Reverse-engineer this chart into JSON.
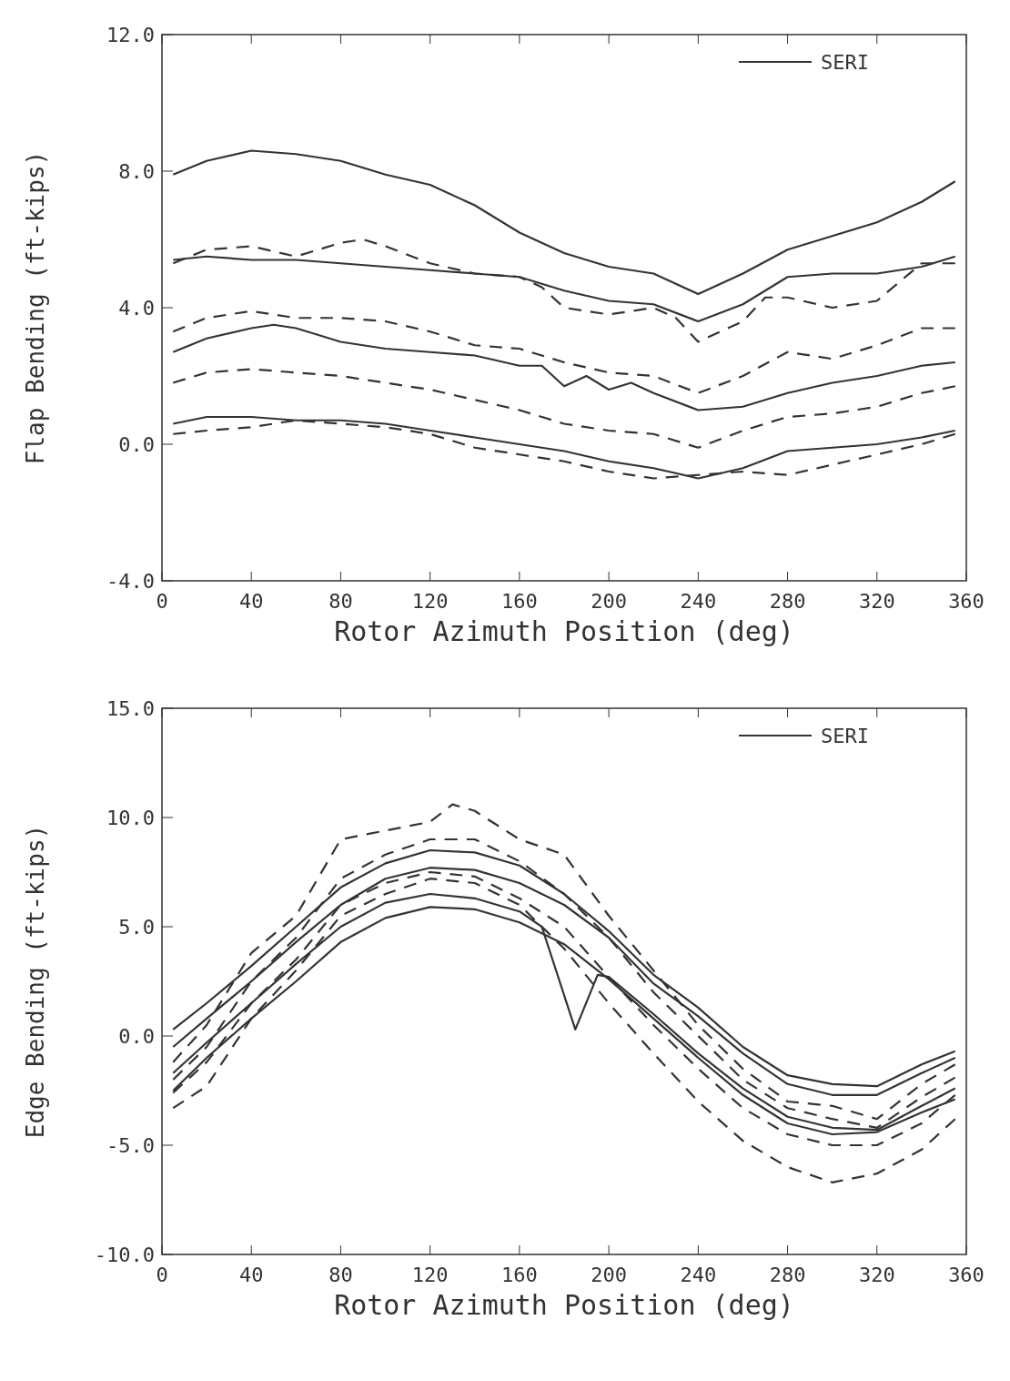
{
  "chart_data": [
    {
      "type": "line",
      "xlabel": "Rotor Azimuth Position (deg)",
      "ylabel": "Flap Bending (ft-kips)",
      "x": [
        5,
        20,
        40,
        60,
        80,
        100,
        120,
        140,
        160,
        180,
        200,
        220,
        240,
        260,
        280,
        300,
        320,
        340,
        355
      ],
      "xlim": [
        0,
        360
      ],
      "xticks": [
        0,
        40,
        80,
        120,
        160,
        200,
        240,
        280,
        320,
        360
      ],
      "ylim": [
        -4,
        12
      ],
      "yticks": [
        {
          "value": -4,
          "label": "-4.0"
        },
        {
          "value": 0,
          "label": "0.0"
        },
        {
          "value": 4,
          "label": "4.0"
        },
        {
          "value": 8,
          "label": "8.0"
        },
        {
          "value": 12,
          "label": "12.0"
        }
      ],
      "legend": "top right",
      "grid": false,
      "series": [
        {
          "name": "SERI",
          "color": "#333333",
          "line_style": "solid",
          "values": [
            7.9,
            8.3,
            8.6,
            8.5,
            8.3,
            7.9,
            7.6,
            7.0,
            6.2,
            5.6,
            5.2,
            5.0,
            4.4,
            5.0,
            5.7,
            6.1,
            6.5,
            7.1,
            7.7
          ]
        },
        {
          "color": "#333333",
          "line_style": "solid",
          "values": [
            5.4,
            5.5,
            5.4,
            5.4,
            5.3,
            5.2,
            5.1,
            5.0,
            4.9,
            4.5,
            4.2,
            4.1,
            3.6,
            4.1,
            4.9,
            5.0,
            5.0,
            5.2,
            5.5
          ]
        },
        {
          "color": "#333333",
          "line_style": "solid",
          "x": [
            5,
            20,
            40,
            50,
            60,
            80,
            100,
            120,
            140,
            160,
            170,
            180,
            190,
            200,
            210,
            220,
            240,
            260,
            280,
            300,
            320,
            340,
            355
          ],
          "values": [
            2.7,
            3.1,
            3.4,
            3.5,
            3.4,
            3.0,
            2.8,
            2.7,
            2.6,
            2.3,
            2.3,
            1.7,
            2.0,
            1.6,
            1.8,
            1.5,
            1.0,
            1.1,
            1.5,
            1.8,
            2.0,
            2.3,
            2.4
          ]
        },
        {
          "color": "#333333",
          "line_style": "solid",
          "values": [
            0.6,
            0.8,
            0.8,
            0.7,
            0.7,
            0.6,
            0.4,
            0.2,
            0.0,
            -0.2,
            -0.5,
            -0.7,
            -1.0,
            -0.7,
            -0.2,
            -0.1,
            0.0,
            0.2,
            0.4
          ]
        },
        {
          "color": "#333333",
          "line_style": "dashed",
          "x": [
            5,
            20,
            40,
            60,
            80,
            90,
            100,
            120,
            140,
            160,
            170,
            180,
            200,
            220,
            230,
            240,
            260,
            270,
            280,
            300,
            320,
            340,
            355
          ],
          "values": [
            5.3,
            5.7,
            5.8,
            5.5,
            5.9,
            6.0,
            5.8,
            5.3,
            5.0,
            4.9,
            4.6,
            4.0,
            3.8,
            4.0,
            3.7,
            3.0,
            3.6,
            4.3,
            4.3,
            4.0,
            4.2,
            5.3,
            5.3
          ]
        },
        {
          "color": "#333333",
          "line_style": "dashed",
          "values": [
            3.3,
            3.7,
            3.9,
            3.7,
            3.7,
            3.6,
            3.3,
            2.9,
            2.8,
            2.4,
            2.1,
            2.0,
            1.5,
            2.0,
            2.7,
            2.5,
            2.9,
            3.4,
            3.4
          ]
        },
        {
          "color": "#333333",
          "line_style": "dashed",
          "values": [
            1.8,
            2.1,
            2.2,
            2.1,
            2.0,
            1.8,
            1.6,
            1.3,
            1.0,
            0.6,
            0.4,
            0.3,
            -0.1,
            0.4,
            0.8,
            0.9,
            1.1,
            1.5,
            1.7
          ]
        },
        {
          "color": "#333333",
          "line_style": "dashed",
          "values": [
            0.3,
            0.4,
            0.5,
            0.7,
            0.6,
            0.5,
            0.3,
            -0.1,
            -0.3,
            -0.5,
            -0.8,
            -1.0,
            -0.9,
            -0.8,
            -0.9,
            -0.6,
            -0.3,
            0.0,
            0.3
          ]
        }
      ]
    },
    {
      "type": "line",
      "xlabel": "Rotor Azimuth Position (deg)",
      "ylabel": "Edge Bending (ft-kips)",
      "x": [
        5,
        20,
        40,
        60,
        80,
        100,
        120,
        140,
        160,
        180,
        200,
        220,
        240,
        260,
        280,
        300,
        320,
        340,
        355
      ],
      "xlim": [
        0,
        360
      ],
      "xticks": [
        0,
        40,
        80,
        120,
        160,
        200,
        240,
        280,
        320,
        360
      ],
      "ylim": [
        -10,
        15
      ],
      "yticks": [
        {
          "value": -10,
          "label": "-10.0"
        },
        {
          "value": -5,
          "label": "-5.0"
        },
        {
          "value": 0,
          "label": "0.0"
        },
        {
          "value": 5,
          "label": "5.0"
        },
        {
          "value": 10,
          "label": "10.0"
        },
        {
          "value": 15,
          "label": "15.0"
        }
      ],
      "legend": "top right",
      "grid": false,
      "series": [
        {
          "name": "SERI",
          "color": "#333333",
          "line_style": "solid",
          "values": [
            0.3,
            1.5,
            3.2,
            5.0,
            6.8,
            7.9,
            8.5,
            8.4,
            7.8,
            6.5,
            4.8,
            2.8,
            1.3,
            -0.5,
            -1.8,
            -2.2,
            -2.3,
            -1.3,
            -0.7
          ]
        },
        {
          "color": "#333333",
          "line_style": "solid",
          "values": [
            -0.5,
            0.8,
            2.5,
            4.3,
            6.0,
            7.2,
            7.7,
            7.6,
            7.0,
            6.0,
            4.5,
            2.4,
            0.9,
            -0.8,
            -2.2,
            -2.7,
            -2.7,
            -1.7,
            -1.0
          ]
        },
        {
          "color": "#333333",
          "line_style": "solid",
          "x": [
            5,
            20,
            40,
            60,
            80,
            100,
            120,
            140,
            160,
            170,
            185,
            195,
            200,
            220,
            240,
            260,
            280,
            300,
            320,
            340,
            355
          ],
          "values": [
            -1.7,
            -0.3,
            1.5,
            3.3,
            5.0,
            6.1,
            6.5,
            6.3,
            5.7,
            5.0,
            0.3,
            2.8,
            2.7,
            1.0,
            -0.8,
            -2.4,
            -3.7,
            -4.2,
            -4.3,
            -3.2,
            -2.4
          ]
        },
        {
          "color": "#333333",
          "line_style": "solid",
          "values": [
            -2.5,
            -1.0,
            0.8,
            2.5,
            4.3,
            5.4,
            5.9,
            5.8,
            5.2,
            4.2,
            2.6,
            0.8,
            -1.0,
            -2.7,
            -4.0,
            -4.5,
            -4.4,
            -3.5,
            -2.9
          ]
        },
        {
          "color": "#333333",
          "line_style": "dashed",
          "x": [
            5,
            20,
            40,
            60,
            80,
            100,
            120,
            130,
            140,
            160,
            180,
            200,
            220,
            240,
            260,
            280,
            300,
            320,
            340,
            355
          ],
          "values": [
            -1.2,
            0.5,
            3.8,
            5.5,
            9.0,
            9.4,
            9.8,
            10.6,
            10.3,
            9.0,
            8.3,
            5.5,
            3.0,
            0.5,
            -1.5,
            -3.0,
            -3.2,
            -3.8,
            -2.2,
            -1.3
          ]
        },
        {
          "color": "#333333",
          "line_style": "dashed",
          "values": [
            -2.0,
            -0.5,
            2.5,
            4.5,
            7.2,
            8.3,
            9.0,
            9.0,
            8.0,
            6.5,
            4.5,
            2.0,
            0.0,
            -2.0,
            -3.3,
            -3.8,
            -4.2,
            -2.8,
            -1.9
          ]
        },
        {
          "color": "#333333",
          "line_style": "dashed",
          "values": [
            -2.6,
            -1.2,
            1.5,
            3.5,
            6.0,
            7.0,
            7.5,
            7.3,
            6.3,
            5.0,
            2.7,
            0.5,
            -1.5,
            -3.3,
            -4.5,
            -5.0,
            -5.0,
            -4.0,
            -2.7
          ]
        },
        {
          "color": "#333333",
          "line_style": "dashed",
          "values": [
            -3.3,
            -2.3,
            0.8,
            3.0,
            5.5,
            6.5,
            7.2,
            7.0,
            6.0,
            4.0,
            1.5,
            -0.8,
            -3.0,
            -4.8,
            -6.0,
            -6.7,
            -6.3,
            -5.2,
            -3.8
          ]
        }
      ]
    }
  ]
}
